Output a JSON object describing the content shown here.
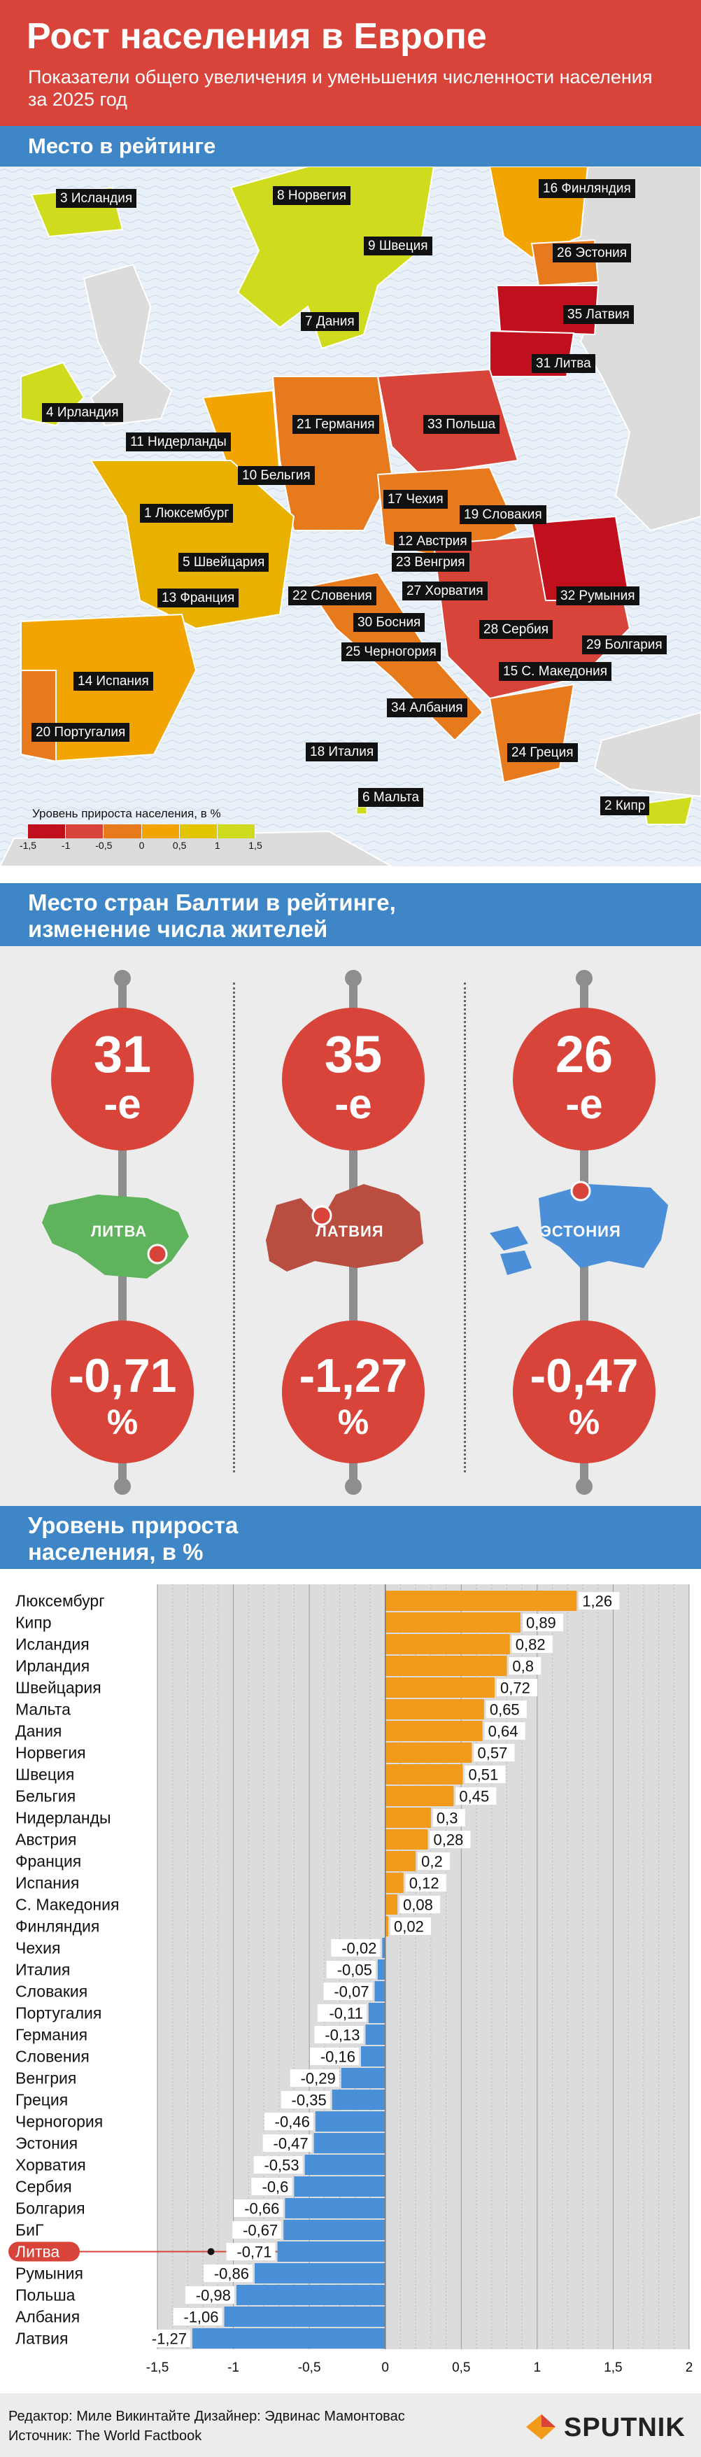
{
  "header": {
    "title": "Рост населения в Европе",
    "subtitle": "Показатели общего увеличения и уменьшения численности населения за 2025 год"
  },
  "sections": {
    "map_title": "Место в рейтинге",
    "baltic_title": "Место стран Балтии в рейтинге, изменение числа жителей",
    "chart_title": "Уровень прироста населения, в %"
  },
  "map": {
    "labels": [
      "3 Исландия",
      "8 Норвегия",
      "16 Финляндия",
      "9 Швеция",
      "26 Эстония",
      "7 Дания",
      "35 Латвия",
      "31 Литва",
      "4 Ирландия",
      "21 Германия",
      "33 Польша",
      "11 Нидерланды",
      "10 Бельгия",
      "17 Чехия",
      "1 Люксембург",
      "19 Словакия",
      "12 Австрия",
      "5 Швейцария",
      "23 Венгрия",
      "13 Франция",
      "22 Словения",
      "27 Хорватия",
      "32 Румыния",
      "30 Босния",
      "28 Сербия",
      "25 Черногория",
      "29 Болгария",
      "14 Испания",
      "15 С. Македония",
      "34 Албания",
      "20 Португалия",
      "18 Италия",
      "24 Греция",
      "6 Мальта",
      "2 Кипр"
    ],
    "legend_title": "Уровень прироста населения, в %",
    "legend_colors": [
      "#c0101e",
      "#d8443a",
      "#e87a1e",
      "#f2a500",
      "#e0c500",
      "#cfdc1e"
    ],
    "legend_ticks": [
      "-1,5",
      "-1",
      "-0,5",
      "0",
      "0,5",
      "1",
      "1,5"
    ]
  },
  "baltic": [
    {
      "rank": "31",
      "suffix": "-е",
      "country": "ЛИТВА",
      "change": "-0,71",
      "pct": "%",
      "color": "#5eb35c"
    },
    {
      "rank": "35",
      "suffix": "-е",
      "country": "ЛАТВИЯ",
      "change": "-1,27",
      "pct": "%",
      "color": "#b84d40"
    },
    {
      "rank": "26",
      "suffix": "-е",
      "country": "ЭСТОНИЯ",
      "change": "-0,47",
      "pct": "%",
      "color": "#4a8fd8"
    }
  ],
  "chart_data": {
    "type": "bar",
    "orientation": "horizontal",
    "categories": [
      "Люксембург",
      "Кипр",
      "Исландия",
      "Ирландия",
      "Швейцария",
      "Мальта",
      "Дания",
      "Норвегия",
      "Швеция",
      "Бельгия",
      "Нидерланды",
      "Австрия",
      "Франция",
      "Испания",
      "С. Македония",
      "Финляндия",
      "Чехия",
      "Италия",
      "Словакия",
      "Португалия",
      "Германия",
      "Словения",
      "Венгрия",
      "Греция",
      "Черногория",
      "Эстония",
      "Хорватия",
      "Сербия",
      "Болгария",
      "БиГ",
      "Литва",
      "Румыния",
      "Польша",
      "Албания",
      "Латвия"
    ],
    "values": [
      1.26,
      0.89,
      0.82,
      0.8,
      0.72,
      0.65,
      0.64,
      0.57,
      0.51,
      0.45,
      0.3,
      0.28,
      0.2,
      0.12,
      0.08,
      0.02,
      -0.02,
      -0.05,
      -0.07,
      -0.11,
      -0.13,
      -0.16,
      -0.29,
      -0.35,
      -0.46,
      -0.47,
      -0.53,
      -0.6,
      -0.66,
      -0.67,
      -0.71,
      -0.86,
      -0.98,
      -1.06,
      -1.27
    ],
    "value_labels": [
      "1,26",
      "0,89",
      "0,82",
      "0,8",
      "0,72",
      "0,65",
      "0,64",
      "0,57",
      "0,51",
      "0,45",
      "0,3",
      "0,28",
      "0,2",
      "0,12",
      "0,08",
      "0,02",
      "-0,02",
      "-0,05",
      "-0,07",
      "-0,11",
      "-0,13",
      "-0,16",
      "-0,29",
      "-0,35",
      "-0,46",
      "-0,47",
      "-0,53",
      "-0,6",
      "-0,66",
      "-0,67",
      "-0,71",
      "-0,86",
      "-0,98",
      "-1,06",
      "-1,27"
    ],
    "highlight": "Литва",
    "xlim": [
      -1.5,
      2
    ],
    "xticks": [
      -1.5,
      -1,
      -0.5,
      0,
      0.5,
      1,
      1.5,
      2
    ],
    "xtick_labels": [
      "-1,5",
      "-1",
      "-0,5",
      "0",
      "0,5",
      "1",
      "1,5",
      "2"
    ],
    "colors": {
      "positive": "#f29a1a",
      "negative": "#4a90d9",
      "highlight": "#d8443a"
    }
  },
  "footer": {
    "editor": "Редактор: Миле Викинтайте  Дизайнер: Эдвинас Мамонтовас",
    "source": "Источник: The World Factbook",
    "logo": "SPUTNIK"
  }
}
